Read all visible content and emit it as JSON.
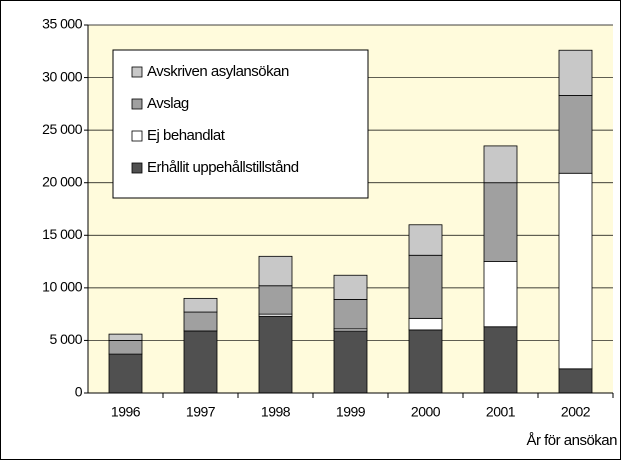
{
  "chart_data": {
    "type": "stacked-bar",
    "x_label": "År för ansökan",
    "categories": [
      "1996",
      "1997",
      "1998",
      "1999",
      "2000",
      "2001",
      "2002"
    ],
    "series": [
      {
        "name": "Erhållit uppehållstillstånd",
        "color": "#505050",
        "values": [
          3700,
          5900,
          7300,
          5900,
          6000,
          6300,
          2300
        ]
      },
      {
        "name": "Ej behandlat",
        "color": "#ffffff",
        "values": [
          0,
          0,
          200,
          200,
          1100,
          6200,
          18600
        ]
      },
      {
        "name": "Avslag",
        "color": "#a0a0a0",
        "values": [
          1300,
          1800,
          2700,
          2800,
          6000,
          7500,
          7400
        ]
      },
      {
        "name": "Avskriven asylansökan",
        "color": "#c8c8c8",
        "values": [
          600,
          1300,
          2800,
          2300,
          2900,
          3500,
          4300
        ]
      }
    ],
    "ylim": [
      0,
      35000
    ],
    "yticks": [
      0,
      {
        "value": 5000,
        "label": "5 000"
      },
      {
        "value": 10000,
        "label": "10 000"
      },
      {
        "value": 15000,
        "label": "15 000"
      },
      {
        "value": 20000,
        "label": "20 000"
      },
      {
        "value": 25000,
        "label": "25 000"
      },
      {
        "value": 30000,
        "label": "30 000"
      },
      {
        "value": 35000,
        "label": "35 000"
      }
    ],
    "grid": true
  }
}
